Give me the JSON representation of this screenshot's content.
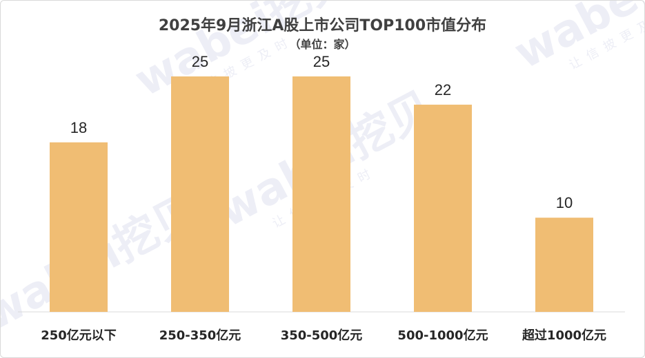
{
  "chart_data": {
    "type": "bar",
    "title": "2025年9月浙江A股上市公司TOP100市值分布",
    "subtitle": "（单位：家）",
    "categories": [
      "250亿元以下",
      "250-350亿元",
      "350-500亿元",
      "500-1000亿元",
      "超过1000亿元"
    ],
    "values": [
      18,
      25,
      25,
      22,
      10
    ],
    "ylim": [
      0,
      30
    ],
    "grid": false,
    "legend": "none",
    "bar_color": "#f0bd73"
  },
  "watermark": {
    "brand": "wabei挖贝",
    "tagline": "让信披更及时"
  }
}
